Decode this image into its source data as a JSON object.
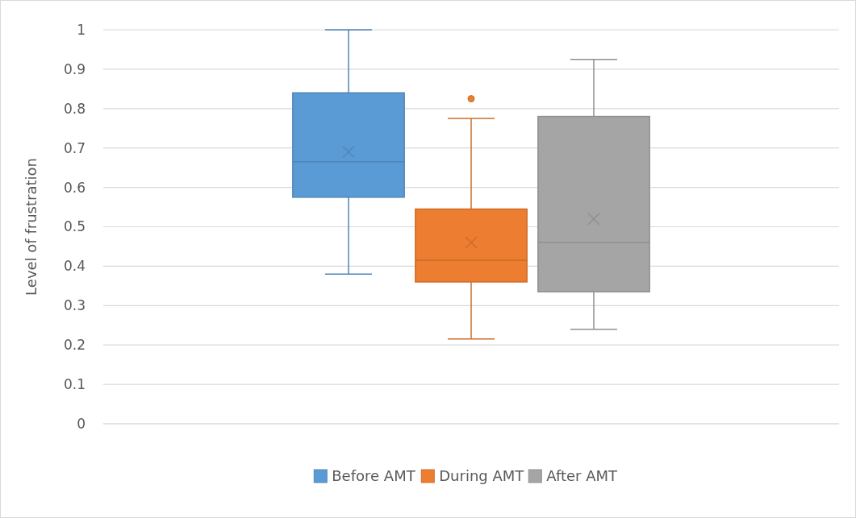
{
  "chart_data": {
    "type": "box",
    "ylabel": "Level of frustration",
    "categories": [
      null
    ],
    "series": [
      {
        "name": "Before AMT",
        "color": "#5b9bd5",
        "boxes": [
          {
            "low": 0.38,
            "q1": 0.575,
            "median": 0.665,
            "q3": 0.84,
            "high": 1.0,
            "mean": 0.69
          }
        ]
      },
      {
        "name": "During AMT",
        "color": "#ed7d31",
        "boxes": [
          {
            "low": 0.215,
            "q1": 0.36,
            "median": 0.415,
            "q3": 0.545,
            "high": 0.775,
            "mean": 0.46,
            "outliers": [
              0.825
            ]
          }
        ]
      },
      {
        "name": "After AMT",
        "color": "#a5a5a5",
        "boxes": [
          {
            "low": 0.24,
            "q1": 0.335,
            "median": 0.46,
            "q3": 0.78,
            "high": 0.925,
            "mean": 0.52
          }
        ]
      }
    ],
    "ylim": [
      0,
      1
    ],
    "yticks": [
      0,
      0.1,
      0.2,
      0.3,
      0.4,
      0.5,
      0.6,
      0.7,
      0.8,
      0.9,
      1
    ],
    "grid": "y",
    "legend": "bottom",
    "marker": "cross"
  }
}
